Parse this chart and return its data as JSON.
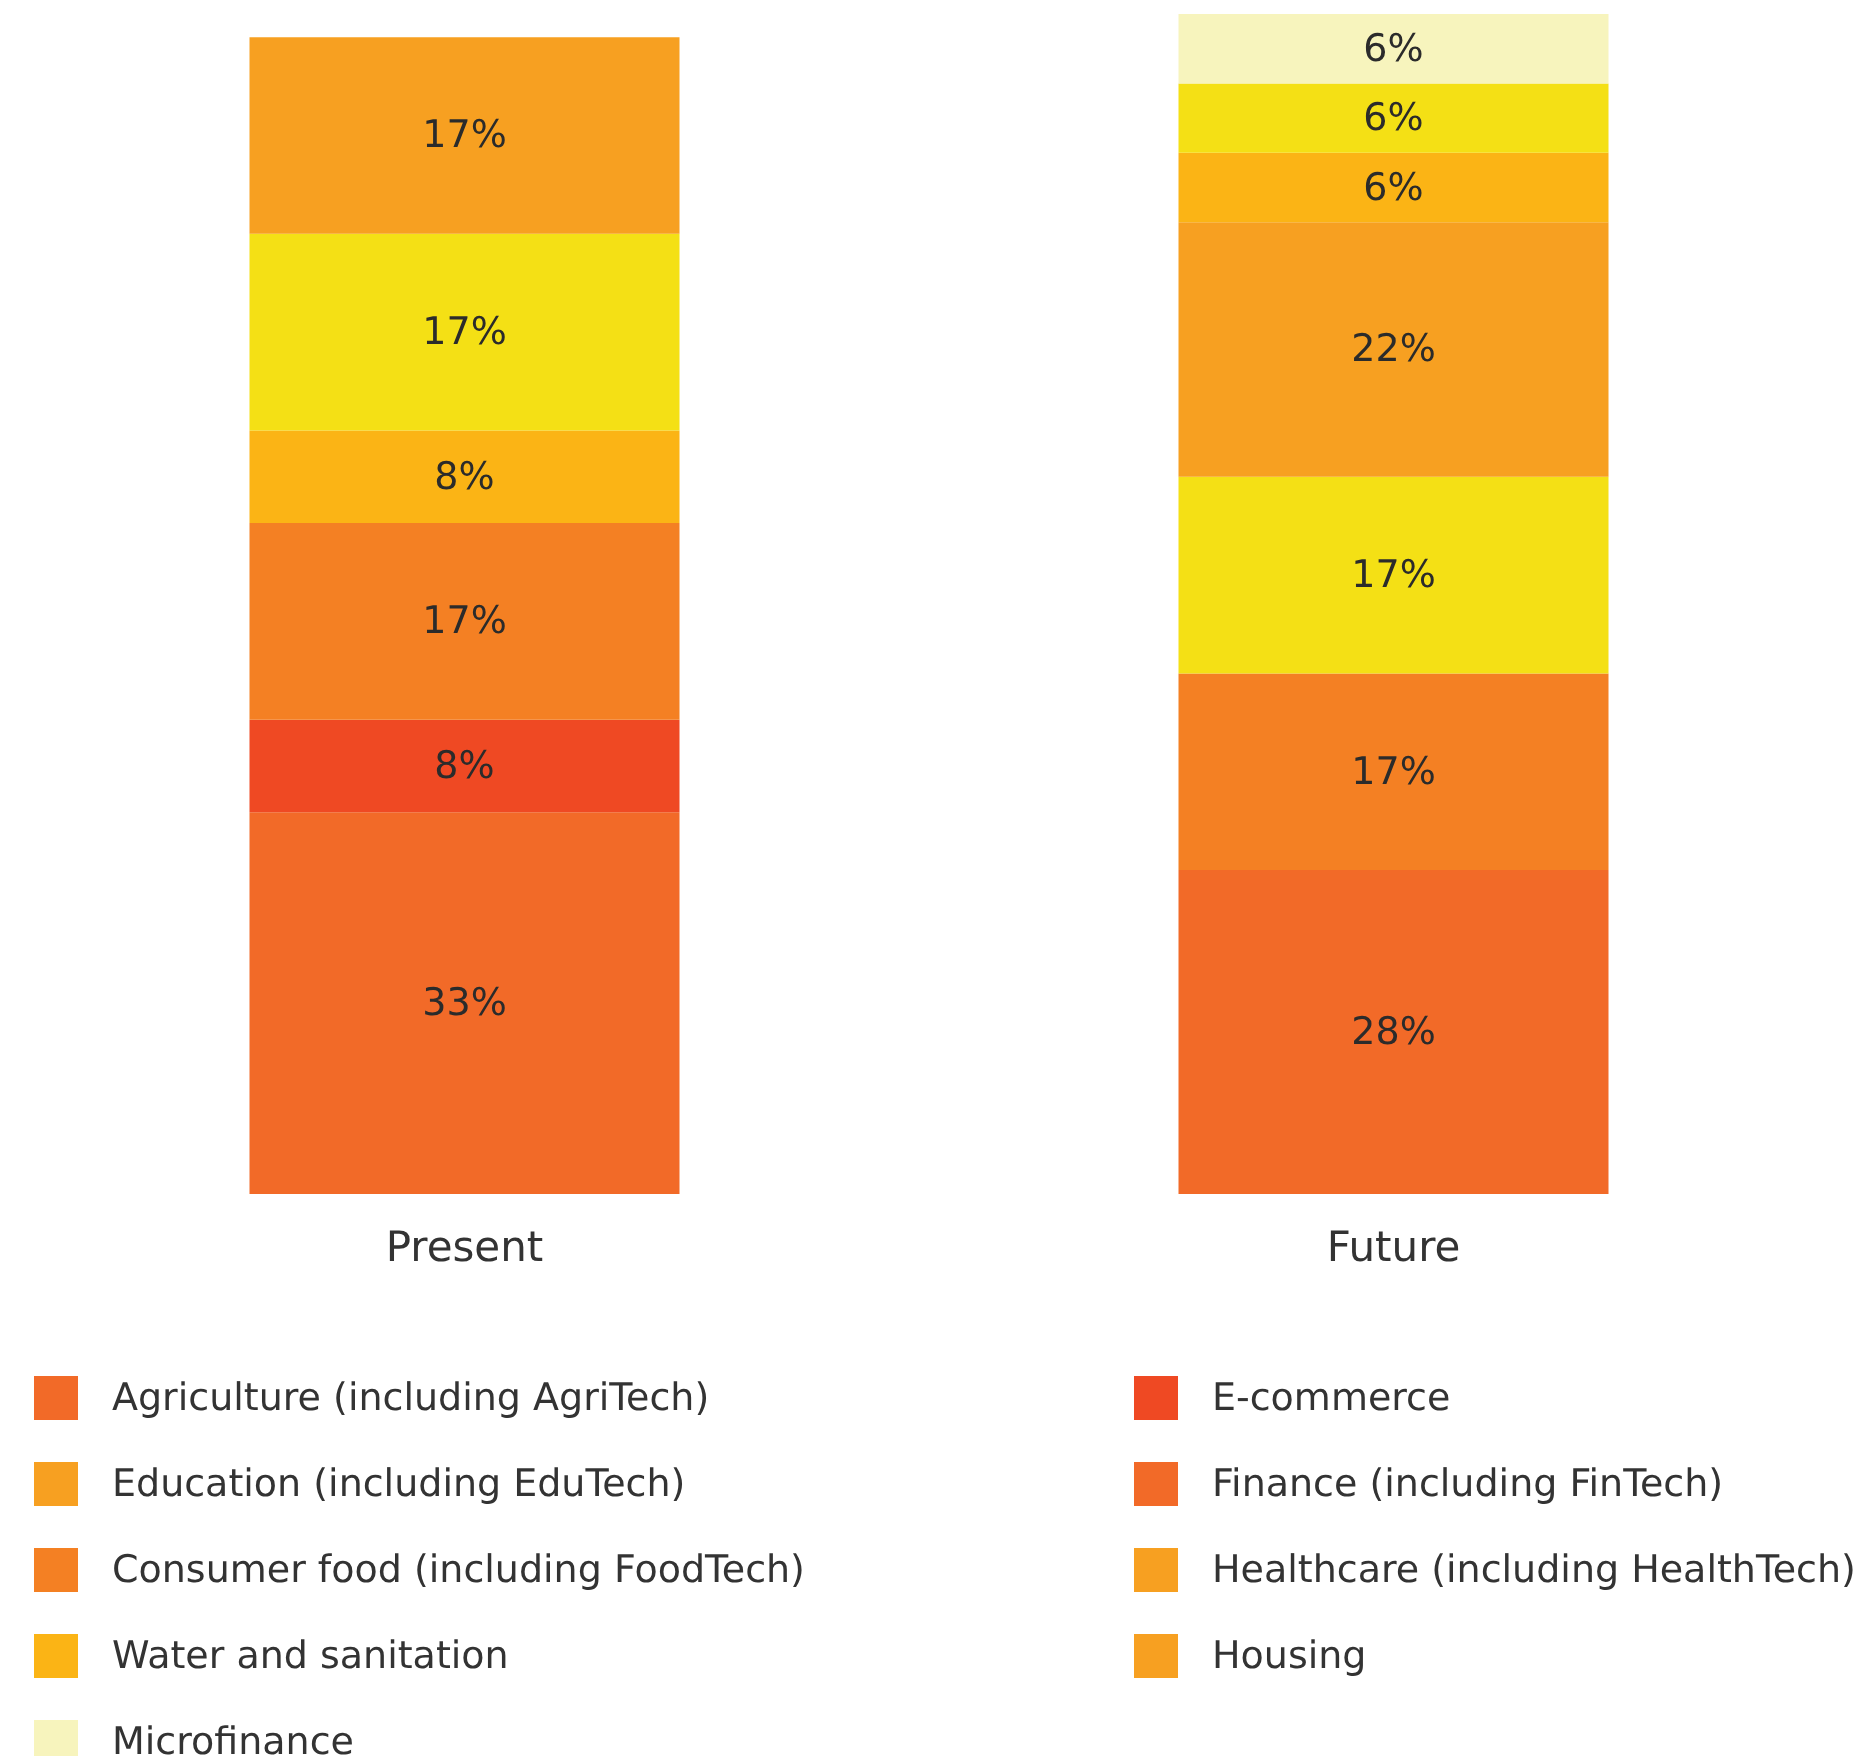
{
  "chart_data": {
    "type": "bar",
    "stacked": true,
    "categories": [
      "Present",
      "Future"
    ],
    "legend": "bottom",
    "series": [
      {
        "values": [
          33,
          28
        ],
        "colors": [
          "#f26a28",
          "#f26a28"
        ],
        "value_labels": [
          "33%",
          "28%"
        ]
      },
      {
        "values": [
          8,
          17
        ],
        "colors": [
          "#ef4923",
          "#f48023"
        ],
        "value_labels": [
          "8%",
          "17%"
        ]
      },
      {
        "values": [
          17,
          17
        ],
        "colors": [
          "#f48023",
          "#f4e015"
        ],
        "value_labels": [
          "17%",
          "17%"
        ]
      },
      {
        "values": [
          8,
          22
        ],
        "colors": [
          "#fbb415",
          "#f7a021"
        ],
        "value_labels": [
          "8%",
          "22%"
        ]
      },
      {
        "values": [
          17,
          6
        ],
        "colors": [
          "#f4e015",
          "#fbb415"
        ],
        "value_labels": [
          "17%",
          "6%"
        ]
      },
      {
        "values": [
          17,
          6
        ],
        "colors": [
          "#f7a021",
          "#f4e015"
        ],
        "value_labels": [
          "17%",
          "6%"
        ]
      },
      {
        "values": [
          null,
          6
        ],
        "colors": [
          null,
          "#f7f4bd"
        ],
        "value_labels": [
          null,
          "6%"
        ]
      },
      {
        "name": "Agriculture (including AgriTech)",
        "color": "#f26a28",
        "values": [
          null,
          null
        ]
      },
      {
        "name": "E-commerce",
        "color": "#ef4923",
        "values": [
          null,
          null
        ]
      },
      {
        "name": "Education (including EduTech)",
        "color": "#f7a021",
        "values": [
          null,
          null
        ]
      },
      {
        "name": "Finance (including FinTech)",
        "color": "#f26a28",
        "values": [
          null,
          null
        ]
      },
      {
        "name": "Consumer food (including FoodTech)",
        "color": "#f48023",
        "values": [
          null,
          null
        ]
      },
      {
        "name": "Healthcare (including HealthTech)",
        "color": "#f7a021",
        "values": [
          null,
          null
        ]
      },
      {
        "name": "Water and sanitation",
        "color": "#fbb415",
        "values": [
          null,
          null
        ]
      },
      {
        "name": "Housing",
        "color": "#f7a021",
        "values": [
          null,
          null
        ]
      },
      {
        "name": "Microfinance",
        "color": "#f7f4bd",
        "values": [
          null,
          null
        ]
      }
    ]
  }
}
